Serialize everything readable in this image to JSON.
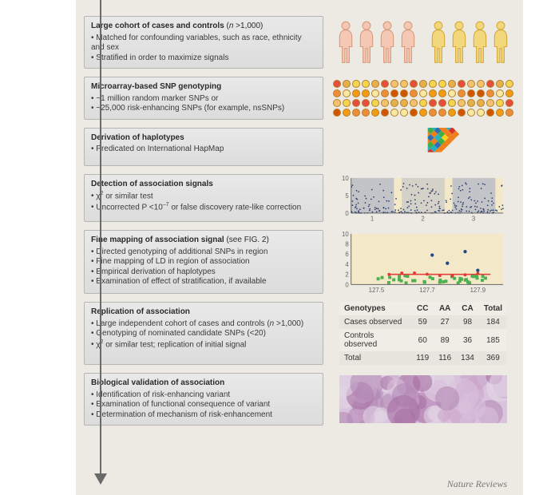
{
  "layout": {
    "canvas_bg": "#edeae3",
    "box_gradient_top": "#e9e9e9",
    "box_gradient_bottom": "#dcdcdc",
    "box_border": "#b5b5b5",
    "arrow_color": "#6a6a6a"
  },
  "steps": [
    {
      "title_html": "Large cohort of cases and controls <span style='font-weight:normal'>(<i>n</i> &gt;1,000)</span>",
      "bullets": [
        "Matched for confounding variables, such as race, ethnicity and sex",
        "Stratified in order to maximize signals"
      ]
    },
    {
      "title_html": "Microarray-based SNP genotyping",
      "bullets": [
        "~1 million random marker SNPs or",
        "~25,000 risk-enhancing SNPs (for example, nsSNPs)"
      ]
    },
    {
      "title_html": "Derivation of haplotypes",
      "bullets": [
        "Predicated on International HapMap"
      ]
    },
    {
      "title_html": "Detection of association signals",
      "bullets": [
        "χ<sup>2</sup> or similar test",
        "Uncorrected P &lt;10<sup>–7</sup> or false discovery rate-like correction"
      ]
    },
    {
      "title_html": "Fine mapping of association signal <span style='font-weight:normal'>(see FIG. 2)</span>",
      "bullets": [
        "Directed genotyping of additional SNPs in region",
        "Fine mapping of LD in region of association",
        "Empirical derivation of haplotypes",
        "Examination of effect of stratification, if available"
      ]
    },
    {
      "title_html": "Replication of association",
      "bullets": [
        "Large independent cohort of cases and controls (<i>n</i> &gt;1,000)",
        "Genotyping of nominated candidate SNPs (&lt;20)",
        "χ<sup>2</sup> or similar test; replication of initial signal"
      ]
    },
    {
      "title_html": "Biological validation of association",
      "bullets": [
        "Identification of risk-enhancing variant",
        "Examination of functional consequence of variant",
        "Determination of mechanism of risk-enhancement"
      ]
    }
  ],
  "people": {
    "group1_color": "#f4c8b4",
    "group1_stroke": "#d89a7a",
    "group2_color": "#f3d77c",
    "group2_stroke": "#d4a938",
    "count_per_group": 4
  },
  "microarray": {
    "rows": 4,
    "cols": 19,
    "palette": [
      "#e84c3d",
      "#f39c12",
      "#f6d44d",
      "#f8e9a1",
      "#e8b04a",
      "#d35400",
      "#f5c26b",
      "#ef8c3a"
    ]
  },
  "ld_triangle": {
    "colors": [
      "#2e6fb4",
      "#3fae49",
      "#f3d21b",
      "#ef7f1a",
      "#d9322a",
      "#23b0c3"
    ]
  },
  "manhattan": {
    "type": "manhattan-scatter",
    "bg": "#f3e8c8",
    "band_color": "#9aa5c9",
    "point_color": "#2c3f6b",
    "y_ticks": [
      0,
      5,
      10
    ],
    "x_ticks": [
      1,
      2,
      3
    ],
    "ylim": [
      0,
      10
    ],
    "axis_color": "#666",
    "label_fontsize": 8
  },
  "finemap": {
    "type": "scatter",
    "bg": "#f3e8c8",
    "y_ticks": [
      0,
      2,
      4,
      6,
      8,
      10
    ],
    "x_ticks": [
      127.5,
      127.7,
      127.9
    ],
    "ylim": [
      0,
      10
    ],
    "xlim": [
      127.4,
      128.0
    ],
    "colors": {
      "green": "#4caf50",
      "red": "#e53935",
      "blue": "#1e4a8a",
      "black": "#000"
    },
    "axis_color": "#666",
    "label_fontsize": 8
  },
  "genotype_table": {
    "header": [
      "Genotypes",
      "CC",
      "AA",
      "CA",
      "Total"
    ],
    "rows": [
      [
        "Cases observed",
        59,
        27,
        98,
        184
      ],
      [
        "Controls observed",
        60,
        89,
        36,
        185
      ],
      [
        "Total",
        119,
        116,
        134,
        369
      ]
    ],
    "header_bg": "#f0ede6",
    "row_alt_bg": "#e8e5de"
  },
  "histology": {
    "colors": [
      "#c9a3c9",
      "#a76fa3",
      "#d9c2dc",
      "#b38ab5",
      "#e3d4e6"
    ]
  },
  "attribution": "Nature Reviews"
}
